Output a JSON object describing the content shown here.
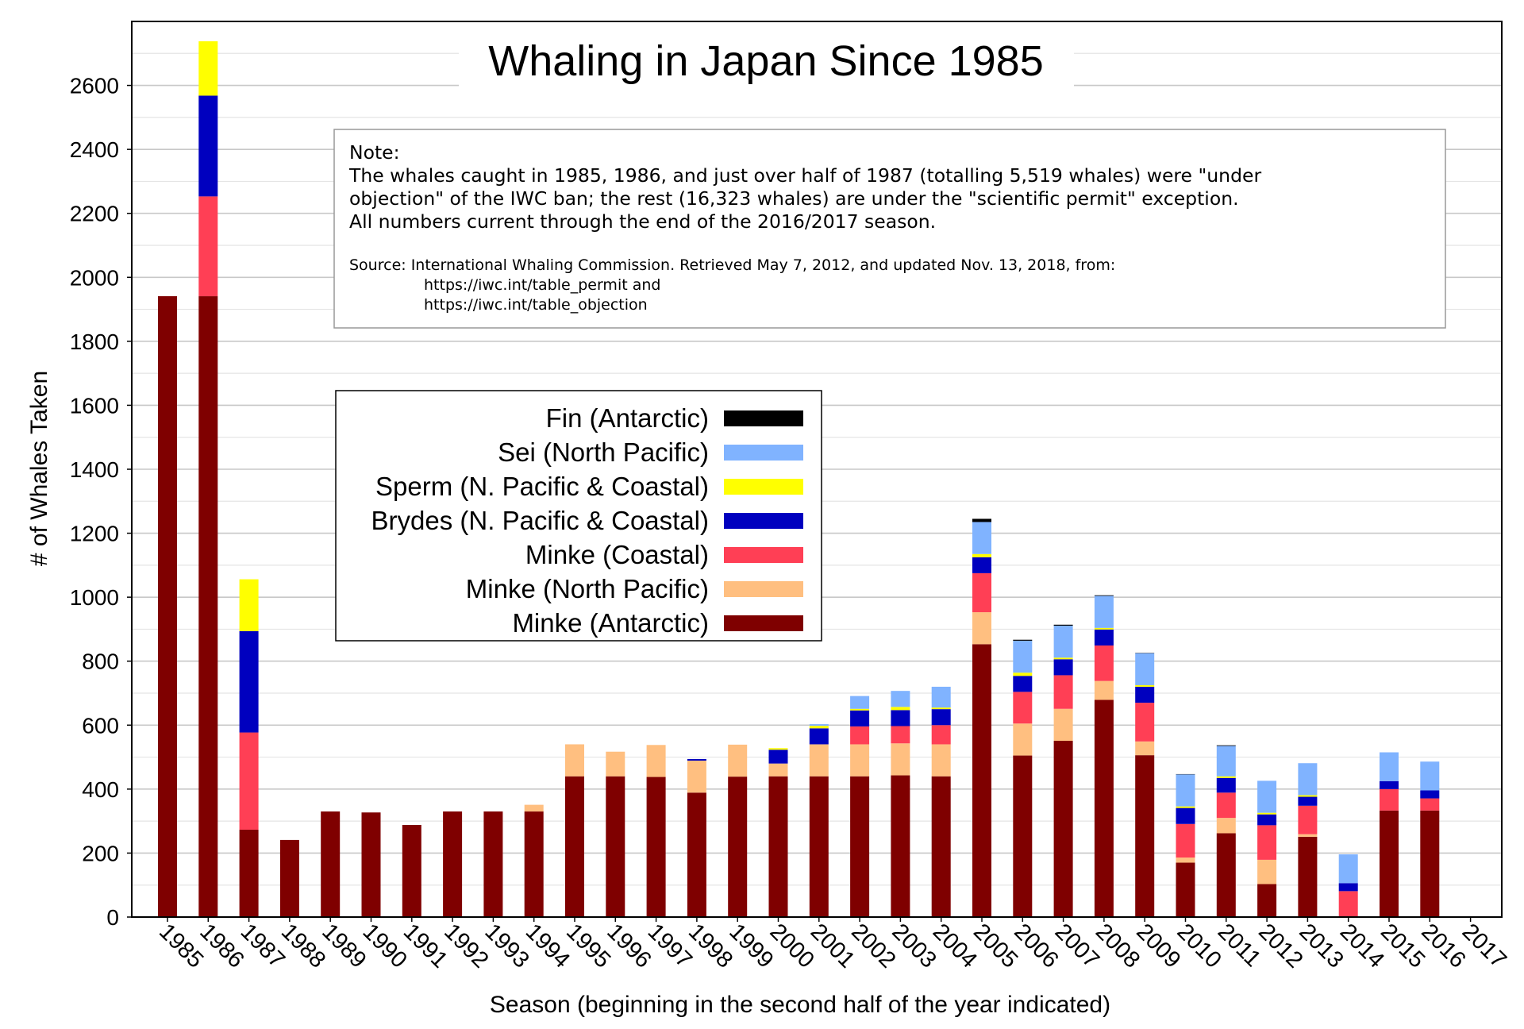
{
  "chart_data": {
    "type": "bar",
    "stacked": true,
    "title": "Whaling in Japan Since 1985",
    "xlabel": "Season (beginning in the second half of the year indicated)",
    "ylabel": "# of Whales Taken",
    "ylim": [
      0,
      2800
    ],
    "yticks": [
      0,
      200,
      400,
      600,
      800,
      1000,
      1200,
      1400,
      1600,
      1800,
      2000,
      2200,
      2400,
      2600
    ],
    "grid": "horizontal",
    "legend_position": "upper-left",
    "categories": [
      "1985",
      "1986",
      "1987",
      "1988",
      "1989",
      "1990",
      "1991",
      "1992",
      "1993",
      "1994",
      "1995",
      "1996",
      "1997",
      "1998",
      "1999",
      "2000",
      "2001",
      "2002",
      "2003",
      "2004",
      "2005",
      "2006",
      "2007",
      "2008",
      "2009",
      "2010",
      "2011",
      "2012",
      "2013",
      "2014",
      "2015",
      "2016",
      "2017"
    ],
    "series": [
      {
        "name": "Minke (Antarctic)",
        "color": "#7f0000",
        "values": [
          1941,
          1941,
          273,
          241,
          330,
          327,
          288,
          330,
          330,
          330,
          440,
          440,
          438,
          389,
          439,
          440,
          440,
          440,
          443,
          440,
          853,
          505,
          551,
          679,
          506,
          170,
          262,
          103,
          251,
          0,
          333,
          333,
          0
        ]
      },
      {
        "name": "Minke (North Pacific)",
        "color": "#ffbf80",
        "values": [
          0,
          0,
          0,
          0,
          0,
          0,
          0,
          0,
          0,
          21,
          100,
          77,
          100,
          100,
          100,
          40,
          100,
          100,
          100,
          100,
          100,
          100,
          100,
          59,
          43,
          16,
          48,
          76,
          8,
          0,
          0,
          0,
          0
        ]
      },
      {
        "name": "Minke (Coastal)",
        "color": "#ff3f55",
        "values": [
          0,
          312,
          304,
          0,
          0,
          0,
          0,
          0,
          0,
          0,
          0,
          0,
          0,
          0,
          0,
          0,
          0,
          56,
          54,
          60,
          122,
          99,
          105,
          111,
          121,
          105,
          79,
          108,
          89,
          81,
          67,
          38,
          0
        ]
      },
      {
        "name": "Brydes (N. Pacific & Coastal)",
        "color": "#0000bf",
        "values": [
          0,
          315,
          317,
          0,
          0,
          0,
          0,
          0,
          0,
          0,
          0,
          0,
          0,
          5,
          0,
          43,
          50,
          50,
          50,
          50,
          50,
          50,
          50,
          50,
          50,
          50,
          46,
          34,
          28,
          25,
          25,
          25,
          0
        ]
      },
      {
        "name": "Sperm (N. Pacific & Coastal)",
        "color": "#ffff00",
        "values": [
          0,
          170,
          162,
          0,
          0,
          0,
          0,
          0,
          0,
          0,
          0,
          0,
          0,
          0,
          0,
          5,
          8,
          5,
          10,
          5,
          10,
          10,
          5,
          5,
          5,
          5,
          5,
          5,
          5,
          0,
          0,
          0,
          0
        ]
      },
      {
        "name": "Sei (North Pacific)",
        "color": "#80b3ff",
        "values": [
          0,
          0,
          0,
          0,
          0,
          0,
          0,
          0,
          0,
          0,
          0,
          0,
          0,
          0,
          0,
          0,
          5,
          40,
          50,
          65,
          100,
          100,
          100,
          100,
          100,
          100,
          95,
          100,
          100,
          90,
          90,
          90,
          0
        ]
      },
      {
        "name": "Fin (Antarctic)",
        "color": "#000000",
        "values": [
          0,
          0,
          0,
          0,
          0,
          0,
          0,
          0,
          0,
          0,
          0,
          0,
          0,
          0,
          0,
          0,
          0,
          0,
          0,
          0,
          10,
          3,
          3,
          2,
          1,
          1,
          2,
          0,
          0,
          0,
          0,
          0,
          0
        ]
      }
    ]
  },
  "legend": {
    "entries": [
      {
        "label": "Fin (Antarctic)",
        "color": "#000000"
      },
      {
        "label": "Sei (North Pacific)",
        "color": "#80b3ff"
      },
      {
        "label": "Sperm (N. Pacific & Coastal)",
        "color": "#ffff00"
      },
      {
        "label": "Brydes (N. Pacific & Coastal)",
        "color": "#0000bf"
      },
      {
        "label": "Minke (Coastal)",
        "color": "#ff3f55"
      },
      {
        "label": "Minke (North Pacific)",
        "color": "#ffbf80"
      },
      {
        "label": "Minke (Antarctic)",
        "color": "#7f0000"
      }
    ]
  },
  "note": {
    "heading": "Note:",
    "line1": "The whales caught in 1985, 1986, and just over half of 1987 (totalling 5,519 whales) were \"under",
    "line2": "objection\" of the IWC ban; the rest (16,323 whales) are under the \"scientific permit\" exception.",
    "line3": "All numbers current through the end of the 2016/2017 season.",
    "source1": "Source:  International Whaling Commission. Retrieved May 7, 2012, and updated Nov. 13, 2018, from:",
    "source2": "https://iwc.int/table_permit  and",
    "source3": "https://iwc.int/table_objection"
  }
}
